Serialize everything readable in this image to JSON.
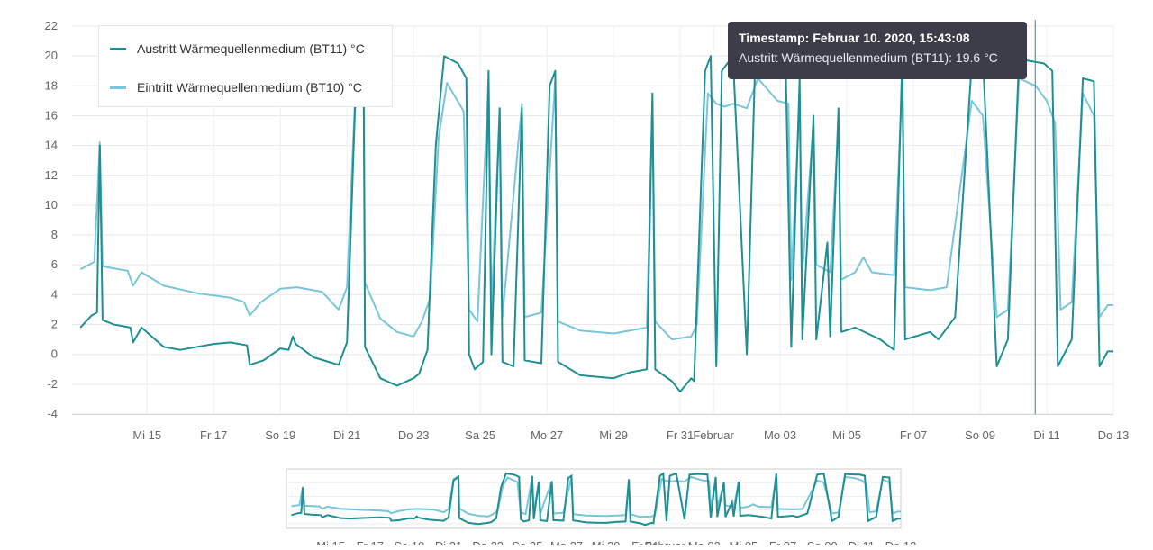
{
  "chart_data": [
    {
      "type": "line",
      "title": "",
      "xlabel": "",
      "ylabel": "",
      "ylim": [
        -4,
        22
      ],
      "y_ticks": [
        -4,
        -2,
        0,
        2,
        4,
        6,
        8,
        10,
        12,
        14,
        16,
        18,
        20,
        22
      ],
      "xlim": [
        "2020-01-12T18:00",
        "2020-02-13"
      ],
      "x_ticks": [
        {
          "date": "2020-01-15",
          "label": "Mi 15"
        },
        {
          "date": "2020-01-17",
          "label": "Fr 17"
        },
        {
          "date": "2020-01-19",
          "label": "So 19"
        },
        {
          "date": "2020-01-21",
          "label": "Di 21"
        },
        {
          "date": "2020-01-23",
          "label": "Do 23"
        },
        {
          "date": "2020-01-25",
          "label": "Sa 25"
        },
        {
          "date": "2020-01-27",
          "label": "Mo 27"
        },
        {
          "date": "2020-01-29",
          "label": "Mi 29"
        },
        {
          "date": "2020-01-31",
          "label": "Fr 31"
        },
        {
          "date": "2020-02-01",
          "label": "Februar"
        },
        {
          "date": "2020-02-03",
          "label": "Mo 03"
        },
        {
          "date": "2020-02-05",
          "label": "Mi 05"
        },
        {
          "date": "2020-02-07",
          "label": "Fr 07"
        },
        {
          "date": "2020-02-09",
          "label": "So 09"
        },
        {
          "date": "2020-02-11",
          "label": "Di 11"
        },
        {
          "date": "2020-02-13",
          "label": "Do 13"
        }
      ],
      "grid": true,
      "legend_position": "top-left",
      "series": [
        {
          "name": "Austritt Wärmequellenmedium (BT11) °C",
          "color": "#1e8f93",
          "points": [
            [
              "2020-01-13T00:00",
              1.8
            ],
            [
              "2020-01-13T08:00",
              2.6
            ],
            [
              "2020-01-13T12:00",
              2.8
            ],
            [
              "2020-01-13T14:00",
              14.0
            ],
            [
              "2020-01-13T16:00",
              2.3
            ],
            [
              "2020-01-14T00:00",
              2.0
            ],
            [
              "2020-01-14T12:00",
              1.8
            ],
            [
              "2020-01-14T14:00",
              0.8
            ],
            [
              "2020-01-14T20:00",
              1.8
            ],
            [
              "2020-01-15T12:00",
              0.5
            ],
            [
              "2020-01-16T00:00",
              0.3
            ],
            [
              "2020-01-17T00:00",
              0.7
            ],
            [
              "2020-01-17T12:00",
              0.8
            ],
            [
              "2020-01-18T00:00",
              0.6
            ],
            [
              "2020-01-18T02:00",
              -0.7
            ],
            [
              "2020-01-18T12:00",
              -0.4
            ],
            [
              "2020-01-19T00:00",
              0.4
            ],
            [
              "2020-01-19T06:00",
              0.3
            ],
            [
              "2020-01-19T09:00",
              1.2
            ],
            [
              "2020-01-19T11:00",
              0.7
            ],
            [
              "2020-01-20T00:00",
              -0.2
            ],
            [
              "2020-01-20T18:00",
              -0.7
            ],
            [
              "2020-01-21T00:00",
              0.8
            ],
            [
              "2020-01-21T06:00",
              17.0
            ],
            [
              "2020-01-21T12:00",
              18.5
            ],
            [
              "2020-01-21T13:00",
              0.5
            ],
            [
              "2020-01-22T00:00",
              -1.6
            ],
            [
              "2020-01-22T12:00",
              -2.1
            ],
            [
              "2020-01-23T00:00",
              -1.6
            ],
            [
              "2020-01-23T04:00",
              -1.3
            ],
            [
              "2020-01-23T10:00",
              0.3
            ],
            [
              "2020-01-23T16:00",
              14.0
            ],
            [
              "2020-01-23T22:00",
              20.0
            ],
            [
              "2020-01-24T08:00",
              19.5
            ],
            [
              "2020-01-24T14:00",
              18.5
            ],
            [
              "2020-01-24T16:00",
              0.0
            ],
            [
              "2020-01-24T20:00",
              -1.0
            ],
            [
              "2020-01-25T02:00",
              -0.5
            ],
            [
              "2020-01-25T06:00",
              19.0
            ],
            [
              "2020-01-25T08:00",
              0.0
            ],
            [
              "2020-01-25T14:00",
              16.5
            ],
            [
              "2020-01-25T16:00",
              -0.5
            ],
            [
              "2020-01-26T00:00",
              -0.8
            ],
            [
              "2020-01-26T06:00",
              16.5
            ],
            [
              "2020-01-26T08:00",
              -0.4
            ],
            [
              "2020-01-26T20:00",
              -0.6
            ],
            [
              "2020-01-27T02:00",
              18.0
            ],
            [
              "2020-01-27T06:00",
              19.0
            ],
            [
              "2020-01-27T08:00",
              -0.5
            ],
            [
              "2020-01-28T00:00",
              -1.4
            ],
            [
              "2020-01-28T12:00",
              -1.5
            ],
            [
              "2020-01-29T00:00",
              -1.6
            ],
            [
              "2020-01-29T12:00",
              -1.2
            ],
            [
              "2020-01-30T00:00",
              -1.0
            ],
            [
              "2020-01-30T04:00",
              17.5
            ],
            [
              "2020-01-30T06:00",
              -1.0
            ],
            [
              "2020-01-30T18:00",
              -1.8
            ],
            [
              "2020-01-31T00:00",
              -2.5
            ],
            [
              "2020-01-31T08:00",
              -1.6
            ],
            [
              "2020-01-31T10:00",
              -1.8
            ],
            [
              "2020-01-31T18:00",
              19.0
            ],
            [
              "2020-01-31T22:00",
              20.0
            ],
            [
              "2020-02-01T02:00",
              -0.8
            ],
            [
              "2020-02-01T06:00",
              19.0
            ],
            [
              "2020-02-01T14:00",
              20.0
            ],
            [
              "2020-02-02T00:00",
              0.0
            ],
            [
              "2020-02-02T06:00",
              19.5
            ],
            [
              "2020-02-02T16:00",
              19.8
            ],
            [
              "2020-02-03T04:00",
              19.6
            ],
            [
              "2020-02-03T08:00",
              0.5
            ],
            [
              "2020-02-03T14:00",
              18.5
            ],
            [
              "2020-02-03T16:00",
              1.0
            ],
            [
              "2020-02-04T00:00",
              16.0
            ],
            [
              "2020-02-04T02:00",
              1.0
            ],
            [
              "2020-02-04T10:00",
              7.5
            ],
            [
              "2020-02-04T12:00",
              1.2
            ],
            [
              "2020-02-04T18:00",
              16.5
            ],
            [
              "2020-02-04T20:00",
              1.5
            ],
            [
              "2020-02-05T06:00",
              1.8
            ],
            [
              "2020-02-06T00:00",
              1.0
            ],
            [
              "2020-02-06T10:00",
              0.3
            ],
            [
              "2020-02-06T16:00",
              20.0
            ],
            [
              "2020-02-06T18:00",
              1.0
            ],
            [
              "2020-02-07T12:00",
              1.5
            ],
            [
              "2020-02-07T18:00",
              1.0
            ],
            [
              "2020-02-08T06:00",
              2.5
            ],
            [
              "2020-02-08T18:00",
              19.5
            ],
            [
              "2020-02-09T02:00",
              20.0
            ],
            [
              "2020-02-09T12:00",
              -0.8
            ],
            [
              "2020-02-09T20:00",
              1.0
            ],
            [
              "2020-02-10T04:00",
              19.8
            ],
            [
              "2020-02-10T15:43",
              19.6
            ],
            [
              "2020-02-10T22:00",
              19.5
            ],
            [
              "2020-02-11T04:00",
              19.0
            ],
            [
              "2020-02-11T08:00",
              -0.8
            ],
            [
              "2020-02-11T18:00",
              1.0
            ],
            [
              "2020-02-12T02:00",
              18.5
            ],
            [
              "2020-02-12T10:00",
              18.3
            ],
            [
              "2020-02-12T14:00",
              -0.8
            ],
            [
              "2020-02-12T20:00",
              0.2
            ],
            [
              "2020-02-13T00:00",
              0.2
            ]
          ]
        },
        {
          "name": "Eintritt Wärmequellenmedium (BT10) °C",
          "color": "#79c5db",
          "points": [
            [
              "2020-01-13T00:00",
              5.7
            ],
            [
              "2020-01-13T10:00",
              6.2
            ],
            [
              "2020-01-13T14:00",
              14.2
            ],
            [
              "2020-01-13T16:00",
              5.9
            ],
            [
              "2020-01-14T10:00",
              5.6
            ],
            [
              "2020-01-14T14:00",
              4.6
            ],
            [
              "2020-01-14T20:00",
              5.5
            ],
            [
              "2020-01-15T12:00",
              4.6
            ],
            [
              "2020-01-16T12:00",
              4.1
            ],
            [
              "2020-01-17T12:00",
              3.8
            ],
            [
              "2020-01-17T22:00",
              3.5
            ],
            [
              "2020-01-18T02:00",
              2.6
            ],
            [
              "2020-01-18T10:00",
              3.5
            ],
            [
              "2020-01-19T00:00",
              4.4
            ],
            [
              "2020-01-19T12:00",
              4.5
            ],
            [
              "2020-01-20T06:00",
              4.2
            ],
            [
              "2020-01-20T18:00",
              3.0
            ],
            [
              "2020-01-21T00:00",
              4.5
            ],
            [
              "2020-01-21T06:00",
              17.5
            ],
            [
              "2020-01-21T12:00",
              18.8
            ],
            [
              "2020-01-21T13:00",
              4.8
            ],
            [
              "2020-01-22T00:00",
              2.4
            ],
            [
              "2020-01-22T12:00",
              1.5
            ],
            [
              "2020-01-23T00:00",
              1.2
            ],
            [
              "2020-01-23T06:00",
              2.2
            ],
            [
              "2020-01-23T12:00",
              3.8
            ],
            [
              "2020-01-23T18:00",
              14.5
            ],
            [
              "2020-01-24T00:00",
              18.2
            ],
            [
              "2020-01-24T12:00",
              16.3
            ],
            [
              "2020-01-24T16:00",
              3.0
            ],
            [
              "2020-01-24T22:00",
              2.2
            ],
            [
              "2020-01-25T06:00",
              18.5
            ],
            [
              "2020-01-25T08:00",
              3.0
            ],
            [
              "2020-01-25T14:00",
              16.5
            ],
            [
              "2020-01-25T16:00",
              2.5
            ],
            [
              "2020-01-26T06:00",
              16.8
            ],
            [
              "2020-01-26T08:00",
              2.5
            ],
            [
              "2020-01-26T20:00",
              2.8
            ],
            [
              "2020-01-27T06:00",
              18.5
            ],
            [
              "2020-01-27T08:00",
              2.2
            ],
            [
              "2020-01-28T00:00",
              1.6
            ],
            [
              "2020-01-29T00:00",
              1.4
            ],
            [
              "2020-01-30T00:00",
              1.8
            ],
            [
              "2020-01-30T04:00",
              17.0
            ],
            [
              "2020-01-30T06:00",
              2.2
            ],
            [
              "2020-01-30T18:00",
              1.0
            ],
            [
              "2020-01-31T08:00",
              1.2
            ],
            [
              "2020-01-31T12:00",
              2.0
            ],
            [
              "2020-01-31T20:00",
              17.5
            ],
            [
              "2020-02-01T02:00",
              16.8
            ],
            [
              "2020-02-01T08:00",
              16.6
            ],
            [
              "2020-02-01T14:00",
              16.8
            ],
            [
              "2020-02-02T00:00",
              16.5
            ],
            [
              "2020-02-02T08:00",
              18.5
            ],
            [
              "2020-02-02T22:00",
              17.0
            ],
            [
              "2020-02-03T06:00",
              16.8
            ],
            [
              "2020-02-03T08:00",
              5.0
            ],
            [
              "2020-02-03T14:00",
              17.0
            ],
            [
              "2020-02-03T16:00",
              5.5
            ],
            [
              "2020-02-04T00:00",
              15.5
            ],
            [
              "2020-02-04T02:00",
              6.0
            ],
            [
              "2020-02-04T12:00",
              5.5
            ],
            [
              "2020-02-04T18:00",
              15.5
            ],
            [
              "2020-02-04T20:00",
              5.0
            ],
            [
              "2020-02-05T06:00",
              5.5
            ],
            [
              "2020-02-05T12:00",
              6.5
            ],
            [
              "2020-02-05T18:00",
              5.5
            ],
            [
              "2020-02-06T10:00",
              5.3
            ],
            [
              "2020-02-06T16:00",
              18.5
            ],
            [
              "2020-02-06T18:00",
              4.5
            ],
            [
              "2020-02-07T12:00",
              4.3
            ],
            [
              "2020-02-08T00:00",
              4.5
            ],
            [
              "2020-02-08T18:00",
              17.0
            ],
            [
              "2020-02-09T02:00",
              16.0
            ],
            [
              "2020-02-09T12:00",
              2.5
            ],
            [
              "2020-02-09T20:00",
              3.0
            ],
            [
              "2020-02-10T04:00",
              18.5
            ],
            [
              "2020-02-10T16:00",
              18.0
            ],
            [
              "2020-02-11T00:00",
              17.0
            ],
            [
              "2020-02-11T06:00",
              15.5
            ],
            [
              "2020-02-11T10:00",
              3.0
            ],
            [
              "2020-02-11T18:00",
              3.5
            ],
            [
              "2020-02-12T02:00",
              17.5
            ],
            [
              "2020-02-12T10:00",
              16.0
            ],
            [
              "2020-02-12T14:00",
              2.5
            ],
            [
              "2020-02-12T20:00",
              3.3
            ],
            [
              "2020-02-13T00:00",
              3.3
            ]
          ]
        }
      ],
      "tooltip": {
        "title": "Timestamp: Februar 10. 2020, 15:43:08",
        "series": "Austritt Wärmequellenmedium (BT11)",
        "value": 19.6,
        "unit": "°C",
        "text": "Austritt Wärmequellenmedium (BT11): 19.6 °C"
      },
      "crosshair": "2020-02-10T15:43"
    },
    {
      "type": "line",
      "role": "navigator",
      "x_ticks": [
        "Mi 15",
        "Fr 17",
        "So 19",
        "Di 21",
        "Do 23",
        "Sa 25",
        "Mo 27",
        "Mi 29",
        "Fr 31",
        "Februar",
        "Mo 03",
        "Mi 05",
        "Fr 07",
        "So 09",
        "Di 11",
        "Do 13"
      ]
    }
  ]
}
